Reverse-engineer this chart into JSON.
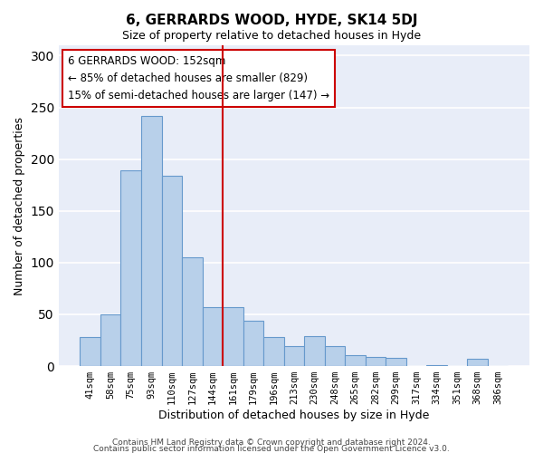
{
  "title": "6, GERRARDS WOOD, HYDE, SK14 5DJ",
  "subtitle": "Size of property relative to detached houses in Hyde",
  "xlabel": "Distribution of detached houses by size in Hyde",
  "ylabel": "Number of detached properties",
  "bar_labels": [
    "41sqm",
    "58sqm",
    "75sqm",
    "93sqm",
    "110sqm",
    "127sqm",
    "144sqm",
    "161sqm",
    "179sqm",
    "196sqm",
    "213sqm",
    "230sqm",
    "248sqm",
    "265sqm",
    "282sqm",
    "299sqm",
    "317sqm",
    "334sqm",
    "351sqm",
    "368sqm",
    "386sqm"
  ],
  "bar_values": [
    28,
    50,
    189,
    242,
    184,
    105,
    57,
    57,
    44,
    28,
    19,
    29,
    19,
    11,
    9,
    8,
    0,
    1,
    0,
    7,
    0
  ],
  "bar_color": "#b8d0ea",
  "bar_edge_color": "#6699cc",
  "vline_color": "#cc0000",
  "annotation_text": "6 GERRARDS WOOD: 152sqm\n← 85% of detached houses are smaller (829)\n15% of semi-detached houses are larger (147) →",
  "annotation_box_color": "#ffffff",
  "annotation_box_edge_color": "#cc0000",
  "ylim": [
    0,
    310
  ],
  "yticks": [
    0,
    50,
    100,
    150,
    200,
    250,
    300
  ],
  "bg_color": "#e8edf8",
  "footer1": "Contains HM Land Registry data © Crown copyright and database right 2024.",
  "footer2": "Contains public sector information licensed under the Open Government Licence v3.0."
}
